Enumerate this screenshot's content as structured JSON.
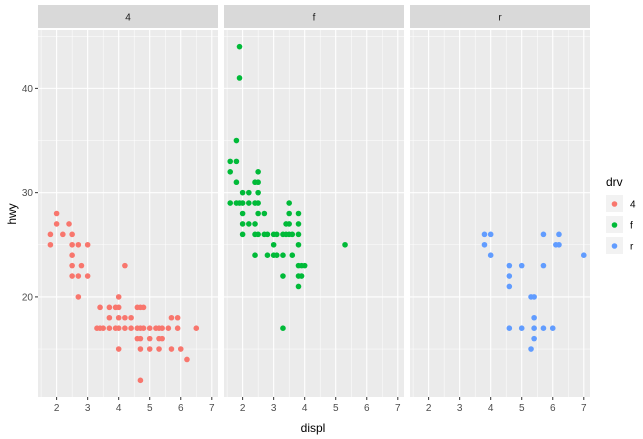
{
  "chart_data": {
    "type": "scatter",
    "facet_by": "drv",
    "xlabel": "displ",
    "ylabel": "hwy",
    "xlim": [
      1.4,
      7.2
    ],
    "ylim": [
      10.4,
      45.6
    ],
    "x_ticks": [
      2,
      3,
      4,
      5,
      6,
      7
    ],
    "y_ticks": [
      20,
      30,
      40
    ],
    "grid": true,
    "legend": {
      "title": "drv",
      "position": "right",
      "entries": [
        {
          "label": "4",
          "color": "#F8766D"
        },
        {
          "label": "f",
          "color": "#00BA38"
        },
        {
          "label": "r",
          "color": "#619CFF"
        }
      ]
    },
    "panels": [
      {
        "label": "4",
        "color": "#F8766D",
        "points": [
          [
            1.8,
            26
          ],
          [
            1.8,
            25
          ],
          [
            2.0,
            28
          ],
          [
            2.0,
            27
          ],
          [
            2.2,
            26
          ],
          [
            2.4,
            27
          ],
          [
            2.5,
            26
          ],
          [
            2.5,
            25
          ],
          [
            2.5,
            24
          ],
          [
            2.7,
            25
          ],
          [
            2.5,
            23
          ],
          [
            2.5,
            22
          ],
          [
            2.7,
            22
          ],
          [
            2.7,
            20
          ],
          [
            2.8,
            23
          ],
          [
            3.0,
            25
          ],
          [
            3.0,
            22
          ],
          [
            3.3,
            17
          ],
          [
            3.4,
            19
          ],
          [
            3.4,
            17
          ],
          [
            3.5,
            17
          ],
          [
            3.7,
            19
          ],
          [
            3.7,
            18
          ],
          [
            3.7,
            17
          ],
          [
            3.9,
            17
          ],
          [
            3.9,
            19
          ],
          [
            4.0,
            20
          ],
          [
            4.0,
            19
          ],
          [
            4.0,
            18
          ],
          [
            4.0,
            17
          ],
          [
            4.0,
            15
          ],
          [
            4.2,
            23
          ],
          [
            4.2,
            18
          ],
          [
            4.2,
            17
          ],
          [
            4.4,
            18
          ],
          [
            4.4,
            17
          ],
          [
            4.6,
            19
          ],
          [
            4.6,
            17
          ],
          [
            4.6,
            16
          ],
          [
            4.7,
            19
          ],
          [
            4.7,
            17
          ],
          [
            4.7,
            16
          ],
          [
            4.7,
            15
          ],
          [
            4.7,
            12
          ],
          [
            4.8,
            19
          ],
          [
            4.8,
            17
          ],
          [
            5.0,
            17
          ],
          [
            5.0,
            16
          ],
          [
            5.0,
            15
          ],
          [
            5.2,
            17
          ],
          [
            5.3,
            17
          ],
          [
            5.3,
            16
          ],
          [
            5.3,
            15
          ],
          [
            5.4,
            17
          ],
          [
            5.4,
            16
          ],
          [
            5.6,
            17
          ],
          [
            5.7,
            18
          ],
          [
            5.7,
            15
          ],
          [
            5.9,
            18
          ],
          [
            5.9,
            17
          ],
          [
            6.0,
            15
          ],
          [
            6.2,
            14
          ],
          [
            6.5,
            17
          ]
        ]
      },
      {
        "label": "f",
        "color": "#00BA38",
        "points": [
          [
            1.6,
            33
          ],
          [
            1.6,
            32
          ],
          [
            1.6,
            29
          ],
          [
            1.8,
            35
          ],
          [
            1.8,
            33
          ],
          [
            1.8,
            29
          ],
          [
            1.8,
            31
          ],
          [
            1.9,
            44
          ],
          [
            1.9,
            41
          ],
          [
            1.9,
            29
          ],
          [
            2.0,
            30
          ],
          [
            2.0,
            29
          ],
          [
            2.0,
            28
          ],
          [
            2.0,
            27
          ],
          [
            2.0,
            26
          ],
          [
            2.2,
            30
          ],
          [
            2.2,
            29
          ],
          [
            2.2,
            27
          ],
          [
            2.4,
            31
          ],
          [
            2.4,
            29
          ],
          [
            2.4,
            27
          ],
          [
            2.4,
            26
          ],
          [
            2.4,
            24
          ],
          [
            2.5,
            32
          ],
          [
            2.5,
            31
          ],
          [
            2.5,
            30
          ],
          [
            2.5,
            29
          ],
          [
            2.5,
            28
          ],
          [
            2.5,
            26
          ],
          [
            2.7,
            28
          ],
          [
            2.7,
            26
          ],
          [
            2.8,
            26
          ],
          [
            2.8,
            24
          ],
          [
            3.0,
            26
          ],
          [
            3.0,
            24
          ],
          [
            3.0,
            25
          ],
          [
            3.1,
            24
          ],
          [
            3.1,
            26
          ],
          [
            3.3,
            17
          ],
          [
            3.3,
            24
          ],
          [
            3.3,
            26
          ],
          [
            3.3,
            22
          ],
          [
            3.4,
            27
          ],
          [
            3.4,
            26
          ],
          [
            3.5,
            29
          ],
          [
            3.5,
            28
          ],
          [
            3.5,
            27
          ],
          [
            3.5,
            26
          ],
          [
            3.6,
            24
          ],
          [
            3.6,
            26
          ],
          [
            3.8,
            28
          ],
          [
            3.8,
            27
          ],
          [
            3.8,
            26
          ],
          [
            3.8,
            25
          ],
          [
            3.8,
            23
          ],
          [
            3.8,
            22
          ],
          [
            3.8,
            21
          ],
          [
            3.9,
            23
          ],
          [
            3.9,
            22
          ],
          [
            4.0,
            23
          ],
          [
            5.3,
            25
          ]
        ]
      },
      {
        "label": "r",
        "color": "#619CFF",
        "points": [
          [
            3.8,
            26
          ],
          [
            3.8,
            25
          ],
          [
            4.0,
            26
          ],
          [
            4.0,
            24
          ],
          [
            4.6,
            23
          ],
          [
            4.6,
            22
          ],
          [
            4.6,
            21
          ],
          [
            4.6,
            17
          ],
          [
            5.0,
            23
          ],
          [
            5.0,
            17
          ],
          [
            5.3,
            15
          ],
          [
            5.3,
            20
          ],
          [
            5.4,
            20
          ],
          [
            5.4,
            18
          ],
          [
            5.4,
            17
          ],
          [
            5.4,
            16
          ],
          [
            5.7,
            26
          ],
          [
            5.7,
            23
          ],
          [
            5.7,
            17
          ],
          [
            6.0,
            17
          ],
          [
            6.1,
            25
          ],
          [
            6.2,
            26
          ],
          [
            6.2,
            25
          ],
          [
            7.0,
            24
          ]
        ]
      }
    ]
  }
}
